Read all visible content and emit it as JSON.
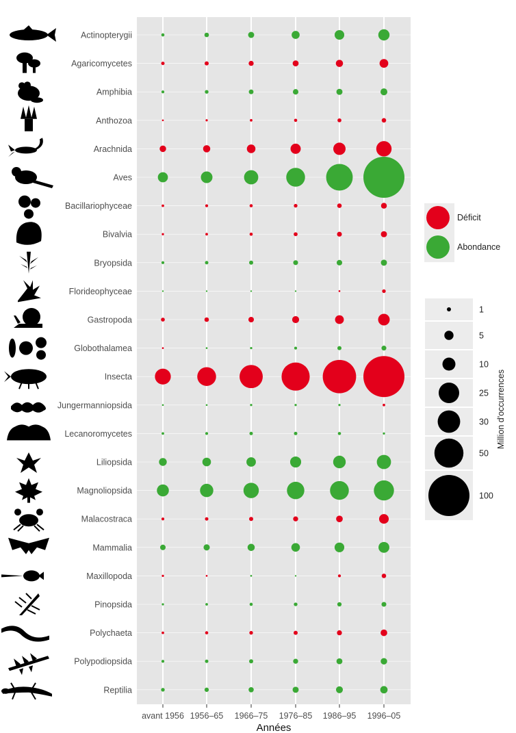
{
  "chart_data": {
    "type": "scatter",
    "xlabel": "Années",
    "x_categories": [
      "avant 1956",
      "1956–65",
      "1966–75",
      "1976–85",
      "1986–95",
      "1996–05"
    ],
    "y_categories": [
      "Actinopterygii",
      "Agaricomycetes",
      "Amphibia",
      "Anthozoa",
      "Arachnida",
      "Aves",
      "Bacillariophyceae",
      "Bivalvia",
      "Bryopsida",
      "Florideophyceae",
      "Gastropoda",
      "Globothalamea",
      "Insecta",
      "Jungermanniopsida",
      "Lecanoromycetes",
      "Liliopsida",
      "Magnoliopsida",
      "Malacostraca",
      "Mammalia",
      "Maxillopoda",
      "Pinopsida",
      "Polychaeta",
      "Polypodiopsida",
      "Reptilia"
    ],
    "color_legend": [
      {
        "label": "Déficit",
        "color": "#e3001b"
      },
      {
        "label": "Abondance",
        "color": "#3aa935"
      }
    ],
    "size_legend": {
      "title": "Million d'occurrences",
      "values": [
        1,
        5,
        10,
        25,
        30,
        50,
        100
      ]
    },
    "series": [
      {
        "category": "Actinopterygii",
        "status": [
          "Abondance",
          "Abondance",
          "Abondance",
          "Abondance",
          "Abondance",
          "Abondance"
        ],
        "values": [
          0.6,
          1.2,
          2.2,
          3.8,
          5.5,
          7.5
        ]
      },
      {
        "category": "Agaricomycetes",
        "status": [
          "Déficit",
          "Déficit",
          "Déficit",
          "Déficit",
          "Déficit",
          "Déficit"
        ],
        "values": [
          0.7,
          1.0,
          1.5,
          2.1,
          3.1,
          4.5
        ]
      },
      {
        "category": "Amphibia",
        "status": [
          "Abondance",
          "Abondance",
          "Abondance",
          "Abondance",
          "Abondance",
          "Abondance"
        ],
        "values": [
          0.5,
          0.8,
          1.3,
          1.8,
          2.2,
          2.8
        ]
      },
      {
        "category": "Anthozoa",
        "status": [
          "Déficit",
          "Déficit",
          "Déficit",
          "Déficit",
          "Déficit",
          "Déficit"
        ],
        "values": [
          0.2,
          0.3,
          0.4,
          0.6,
          0.9,
          1.2
        ]
      },
      {
        "category": "Arachnida",
        "status": [
          "Déficit",
          "Déficit",
          "Déficit",
          "Déficit",
          "Déficit",
          "Déficit"
        ],
        "values": [
          2.5,
          3.1,
          4.4,
          6.2,
          9.0,
          14.0
        ]
      },
      {
        "category": "Aves",
        "status": [
          "Abondance",
          "Abondance",
          "Abondance",
          "Abondance",
          "Abondance",
          "Abondance"
        ],
        "values": [
          6.0,
          8.0,
          12.0,
          21.0,
          42.0,
          100.0
        ]
      },
      {
        "category": "Bacillariophyceae",
        "status": [
          "Déficit",
          "Déficit",
          "Déficit",
          "Déficit",
          "Déficit",
          "Déficit"
        ],
        "values": [
          0.4,
          0.5,
          0.6,
          0.8,
          1.2,
          2.0
        ]
      },
      {
        "category": "Bivalvia",
        "status": [
          "Déficit",
          "Déficit",
          "Déficit",
          "Déficit",
          "Déficit",
          "Déficit"
        ],
        "values": [
          0.3,
          0.4,
          0.6,
          0.9,
          1.4,
          2.2
        ]
      },
      {
        "category": "Bryopsida",
        "status": [
          "Abondance",
          "Abondance",
          "Abondance",
          "Abondance",
          "Abondance",
          "Abondance"
        ],
        "values": [
          0.5,
          0.7,
          1.0,
          1.4,
          1.8,
          2.2
        ]
      },
      {
        "category": "Florideophyceae",
        "status": [
          "Abondance",
          "Abondance",
          "Abondance",
          "Abondance",
          "Déficit",
          "Déficit"
        ],
        "values": [
          0.05,
          0.1,
          0.1,
          0.1,
          0.2,
          0.8
        ]
      },
      {
        "category": "Gastropoda",
        "status": [
          "Déficit",
          "Déficit",
          "Déficit",
          "Déficit",
          "Déficit",
          "Déficit"
        ],
        "values": [
          0.9,
          1.2,
          1.8,
          2.9,
          4.6,
          8.0
        ]
      },
      {
        "category": "Globothalamea",
        "status": [
          "Déficit",
          "Abondance",
          "Abondance",
          "Abondance",
          "Abondance",
          "Abondance"
        ],
        "values": [
          0.2,
          0.2,
          0.3,
          0.5,
          1.0,
          1.4
        ]
      },
      {
        "category": "Insecta",
        "status": [
          "Déficit",
          "Déficit",
          "Déficit",
          "Déficit",
          "Déficit",
          "Déficit"
        ],
        "values": [
          15.0,
          21.0,
          32.0,
          47.0,
          66.0,
          100.0
        ]
      },
      {
        "category": "Jungermanniopsida",
        "status": [
          "Abondance",
          "Abondance",
          "Abondance",
          "Abondance",
          "Abondance",
          "Déficit"
        ],
        "values": [
          0.2,
          0.2,
          0.3,
          0.3,
          0.3,
          0.4
        ]
      },
      {
        "category": "Lecanoromycetes",
        "status": [
          "Abondance",
          "Abondance",
          "Abondance",
          "Abondance",
          "Abondance",
          "Abondance"
        ],
        "values": [
          0.4,
          0.5,
          0.7,
          0.7,
          0.6,
          0.3
        ]
      },
      {
        "category": "Liliopsida",
        "status": [
          "Abondance",
          "Abondance",
          "Abondance",
          "Abondance",
          "Abondance",
          "Abondance"
        ],
        "values": [
          3.6,
          4.4,
          5.3,
          7.2,
          9.4,
          12.0
        ]
      },
      {
        "category": "Magnoliopsida",
        "status": [
          "Abondance",
          "Abondance",
          "Abondance",
          "Abondance",
          "Abondance",
          "Abondance"
        ],
        "values": [
          8.5,
          10.5,
          14.0,
          18.0,
          21.0,
          24.0
        ]
      },
      {
        "category": "Malacostraca",
        "status": [
          "Déficit",
          "Déficit",
          "Déficit",
          "Déficit",
          "Déficit",
          "Déficit"
        ],
        "values": [
          0.5,
          0.7,
          1.0,
          1.5,
          2.6,
          5.5
        ]
      },
      {
        "category": "Mammalia",
        "status": [
          "Abondance",
          "Abondance",
          "Abondance",
          "Abondance",
          "Abondance",
          "Abondance"
        ],
        "values": [
          1.8,
          2.3,
          3.1,
          4.4,
          5.6,
          7.0
        ]
      },
      {
        "category": "Maxillopoda",
        "status": [
          "Déficit",
          "Déficit",
          "Abondance",
          "Abondance",
          "Déficit",
          "Déficit"
        ],
        "values": [
          0.3,
          0.2,
          0.2,
          0.1,
          0.5,
          1.2
        ]
      },
      {
        "category": "Pinopsida",
        "status": [
          "Abondance",
          "Abondance",
          "Abondance",
          "Abondance",
          "Abondance",
          "Abondance"
        ],
        "values": [
          0.3,
          0.4,
          0.6,
          0.8,
          1.1,
          1.4
        ]
      },
      {
        "category": "Polychaeta",
        "status": [
          "Déficit",
          "Déficit",
          "Déficit",
          "Déficit",
          "Déficit",
          "Déficit"
        ],
        "values": [
          0.4,
          0.6,
          0.8,
          1.0,
          1.5,
          2.6
        ]
      },
      {
        "category": "Polypodiopsida",
        "status": [
          "Abondance",
          "Abondance",
          "Abondance",
          "Abondance",
          "Abondance",
          "Abondance"
        ],
        "values": [
          0.5,
          0.7,
          1.0,
          1.5,
          2.1,
          2.5
        ]
      },
      {
        "category": "Reptilia",
        "status": [
          "Abondance",
          "Abondance",
          "Abondance",
          "Abondance",
          "Abondance",
          "Abondance"
        ],
        "values": [
          0.8,
          1.1,
          1.6,
          2.2,
          2.8,
          3.2
        ]
      }
    ],
    "grid": true,
    "legend_placement": "right"
  },
  "icons": [
    "fish-icon",
    "mushroom-icon",
    "frog-icon",
    "anemone-icon",
    "scorpion-icon",
    "bird-icon",
    "diatom-icon",
    "clam-icon",
    "moss-icon",
    "seaweed-icon",
    "snail-icon",
    "foraminifera-icon",
    "beetle-icon",
    "liverwort-icon",
    "lichen-icon",
    "lily-icon",
    "maple-leaf-icon",
    "crab-icon",
    "bat-icon",
    "copepod-icon",
    "pine-icon",
    "worm-icon",
    "fern-icon",
    "salamander-icon"
  ]
}
